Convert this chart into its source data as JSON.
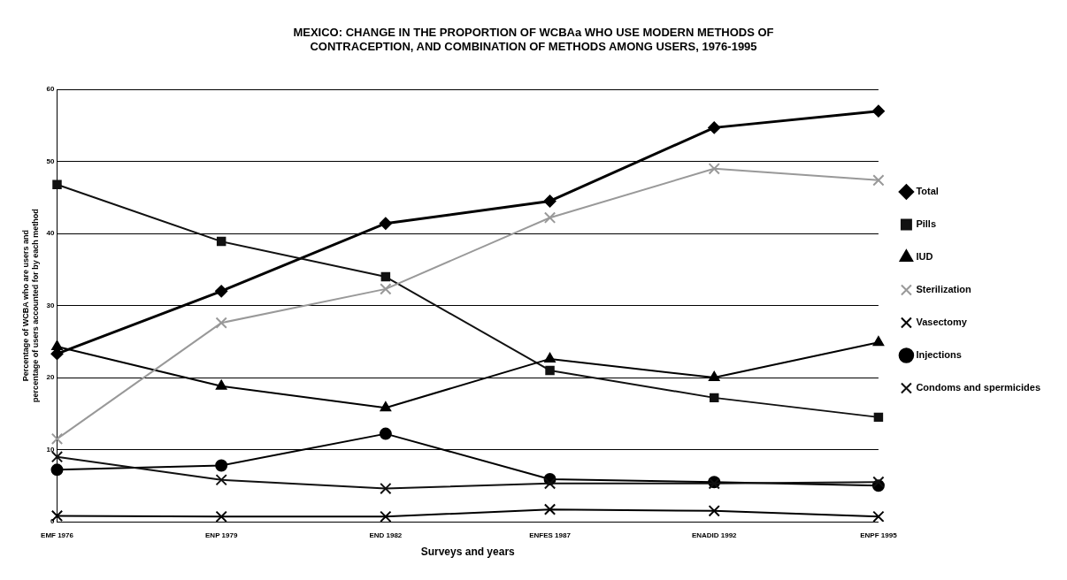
{
  "chart_data": {
    "type": "line",
    "title": "MEXICO: CHANGE IN THE PROPORTION OF WCBAa WHO USE MODERN METHODS OF CONTRACEPTION, AND COMBINATION OF METHODS AMONG USERS, 1976-1995",
    "xlabel": "Surveys and years",
    "ylabel": "Percentage of WCBA who are users and percentage of users accounted for by each method",
    "categories": [
      "EMF 1976",
      "ENP 1979",
      "END 1982",
      "ENFES 1987",
      "ENADID 1992",
      "ENPF 1995"
    ],
    "ylim": [
      0,
      60
    ],
    "yticks": [
      0,
      10,
      20,
      30,
      40,
      50,
      60
    ],
    "grid": "y",
    "legend": "right",
    "line_style": "solid",
    "series": [
      {
        "name": "Total",
        "color": "#000000",
        "marker": "diamond",
        "values": [
          23.3,
          32,
          41.4,
          44.5,
          54.7,
          57
        ]
      },
      {
        "name": "Pills",
        "color": "#111111",
        "marker": "square",
        "values": [
          46.8,
          38.9,
          34,
          21,
          17.2,
          14.5
        ]
      },
      {
        "name": "IUD",
        "color": "#000000",
        "marker": "triangle",
        "values": [
          24.3,
          18.8,
          15.8,
          22.6,
          20,
          24.9
        ]
      },
      {
        "name": "Sterilization",
        "color": "#999999",
        "marker": "cross",
        "values": [
          11.5,
          27.6,
          32.3,
          42.2,
          49,
          47.4
        ]
      },
      {
        "name": "Vasectomy",
        "color": "#000000",
        "marker": "cross",
        "values": [
          0.8,
          0.7,
          0.7,
          1.7,
          1.5,
          0.7
        ]
      },
      {
        "name": "Injections",
        "color": "#000000",
        "marker": "circle",
        "values": [
          7.2,
          7.8,
          12.2,
          5.9,
          5.5,
          5
        ]
      },
      {
        "name": "Condoms and spermicides",
        "color": "#111111",
        "marker": "cross",
        "values": [
          9,
          5.8,
          4.6,
          5.3,
          5.3,
          5.5
        ]
      }
    ]
  }
}
